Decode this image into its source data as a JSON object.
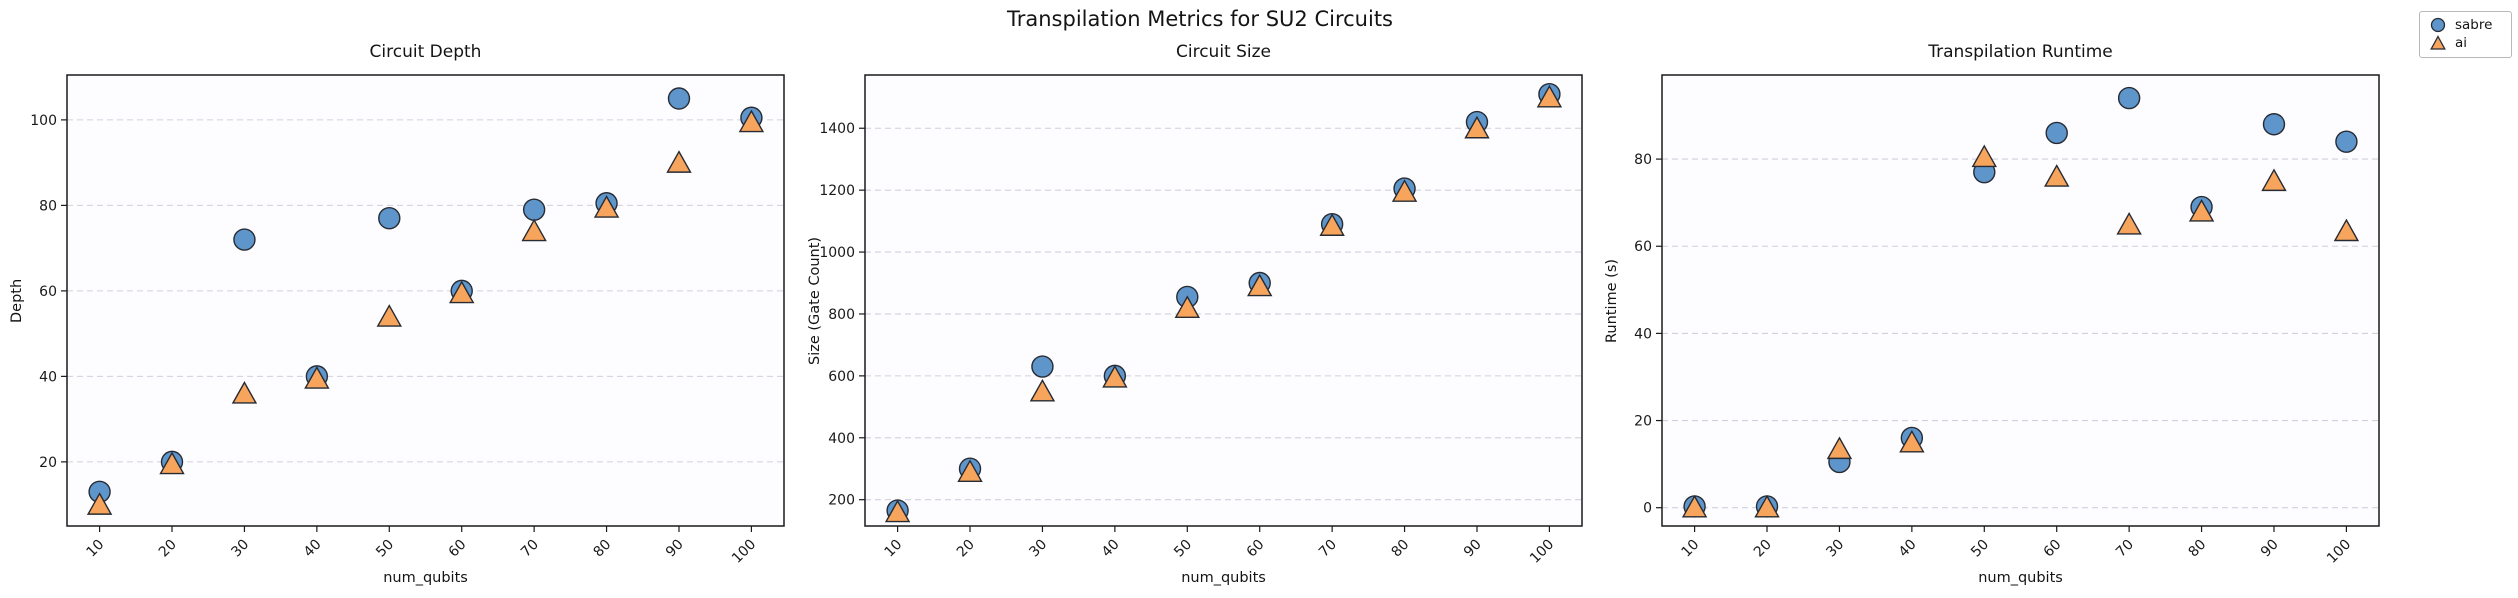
{
  "figure": {
    "title": "Transpilation Metrics for SU2 Circuits"
  },
  "legend": {
    "items": [
      {
        "label": "sabre",
        "marker": "circle-marker-icon",
        "color": "#5e95ca"
      },
      {
        "label": "ai",
        "marker": "triangle-marker-icon",
        "color": "#f7a55c"
      }
    ]
  },
  "style": {
    "series_colors": {
      "sabre": "#5e95ca",
      "ai": "#f7a55c"
    },
    "marker_edge": "#272b33",
    "grid_color": "#d3cfdc",
    "frame_color": "#1a1a1a",
    "axes_bg": "#fdfcfe",
    "text_color": "#1a1a1a"
  },
  "chart_data": [
    {
      "type": "scatter",
      "title": "Circuit Depth",
      "xlabel": "num_qubits",
      "ylabel": "Depth",
      "x": [
        10,
        20,
        30,
        40,
        50,
        60,
        70,
        80,
        90,
        100
      ],
      "xticks": [
        10,
        20,
        30,
        40,
        50,
        60,
        70,
        80,
        90,
        100
      ],
      "yticks": [
        20,
        40,
        60,
        80,
        100
      ],
      "xlim": [
        5.5,
        104.5
      ],
      "ylim": [
        5,
        110.5
      ],
      "grid": "horizontal-dashed",
      "legend_position": "figure-top-right",
      "series": [
        {
          "name": "sabre",
          "marker": "circle",
          "values": [
            13,
            20,
            72,
            40,
            77,
            60,
            79,
            80.5,
            105,
            100.5
          ]
        },
        {
          "name": "ai",
          "marker": "triangle",
          "values": [
            10,
            19.5,
            36,
            39.5,
            54,
            59.5,
            74,
            79.5,
            90,
            99.5
          ]
        }
      ]
    },
    {
      "type": "scatter",
      "title": "Circuit Size",
      "xlabel": "num_qubits",
      "ylabel": "Size (Gate Count)",
      "x": [
        10,
        20,
        30,
        40,
        50,
        60,
        70,
        80,
        90,
        100
      ],
      "xticks": [
        10,
        20,
        30,
        40,
        50,
        60,
        70,
        80,
        90,
        100
      ],
      "yticks": [
        200,
        400,
        600,
        800,
        1000,
        1200,
        1400
      ],
      "xlim": [
        5.5,
        104.5
      ],
      "ylim": [
        115,
        1572
      ],
      "grid": "horizontal-dashed",
      "series": [
        {
          "name": "sabre",
          "marker": "circle",
          "values": [
            165,
            300,
            630,
            600,
            855,
            900,
            1090,
            1205,
            1420,
            1510
          ]
        },
        {
          "name": "ai",
          "marker": "triangle",
          "values": [
            160,
            290,
            550,
            595,
            820,
            890,
            1085,
            1195,
            1400,
            1500
          ]
        }
      ]
    },
    {
      "type": "scatter",
      "title": "Transpilation Runtime",
      "xlabel": "num_qubits",
      "ylabel": "Runtime (s)",
      "x": [
        10,
        20,
        30,
        40,
        50,
        60,
        70,
        80,
        90,
        100
      ],
      "xticks": [
        10,
        20,
        30,
        40,
        50,
        60,
        70,
        80,
        90,
        100
      ],
      "yticks": [
        0,
        20,
        40,
        60,
        80
      ],
      "xlim": [
        5.5,
        104.5
      ],
      "ylim": [
        -4.2,
        99.3
      ],
      "grid": "horizontal-dashed",
      "series": [
        {
          "name": "sabre",
          "marker": "circle",
          "values": [
            0.3,
            0.3,
            10.5,
            16,
            77,
            86,
            94,
            69,
            88,
            84
          ]
        },
        {
          "name": "ai",
          "marker": "triangle",
          "values": [
            0.1,
            0.1,
            13.5,
            15,
            80.5,
            76,
            65,
            68,
            75,
            63.5
          ]
        }
      ]
    }
  ]
}
